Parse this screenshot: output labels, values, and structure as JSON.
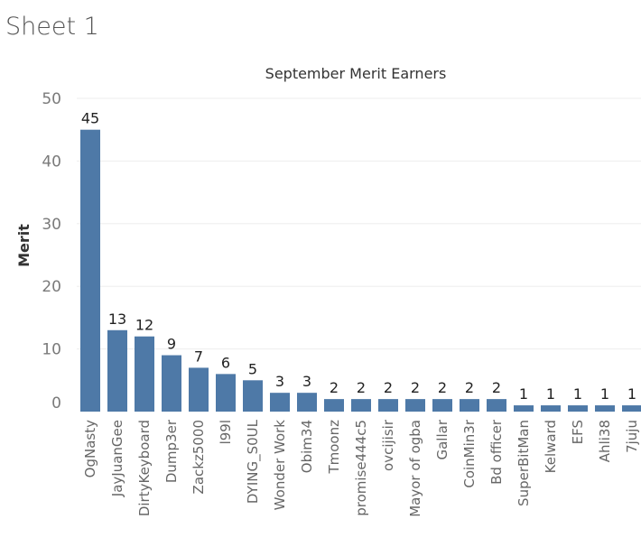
{
  "sheet": {
    "title": "Sheet 1"
  },
  "colors": {
    "bar": "#4e79a7"
  },
  "chart_data": {
    "type": "bar",
    "title": "September Merit Earners",
    "xlabel": "",
    "ylabel": "Merit",
    "ylim": [
      0,
      50
    ],
    "yticks": [
      0,
      10,
      20,
      30,
      40,
      50
    ],
    "grid": true,
    "categories": [
      "OgNasty",
      "JayJuanGee",
      "DirtyKeyboard",
      "Dump3er",
      "Zackz5000",
      "l99l",
      "DYING_S0UL",
      "Wonder Work",
      "Obim34",
      "Tmoonz",
      "promise444c5",
      "ovcijisir",
      "Mayor of ogba",
      "Gallar",
      "CoinMin3r",
      "Bd officer",
      "SuperBitMan",
      "Kelward",
      "EFS",
      "Ahli38",
      "7juju"
    ],
    "values": [
      45,
      13,
      12,
      9,
      7,
      6,
      5,
      3,
      3,
      2,
      2,
      2,
      2,
      2,
      2,
      2,
      1,
      1,
      1,
      1,
      1
    ]
  }
}
